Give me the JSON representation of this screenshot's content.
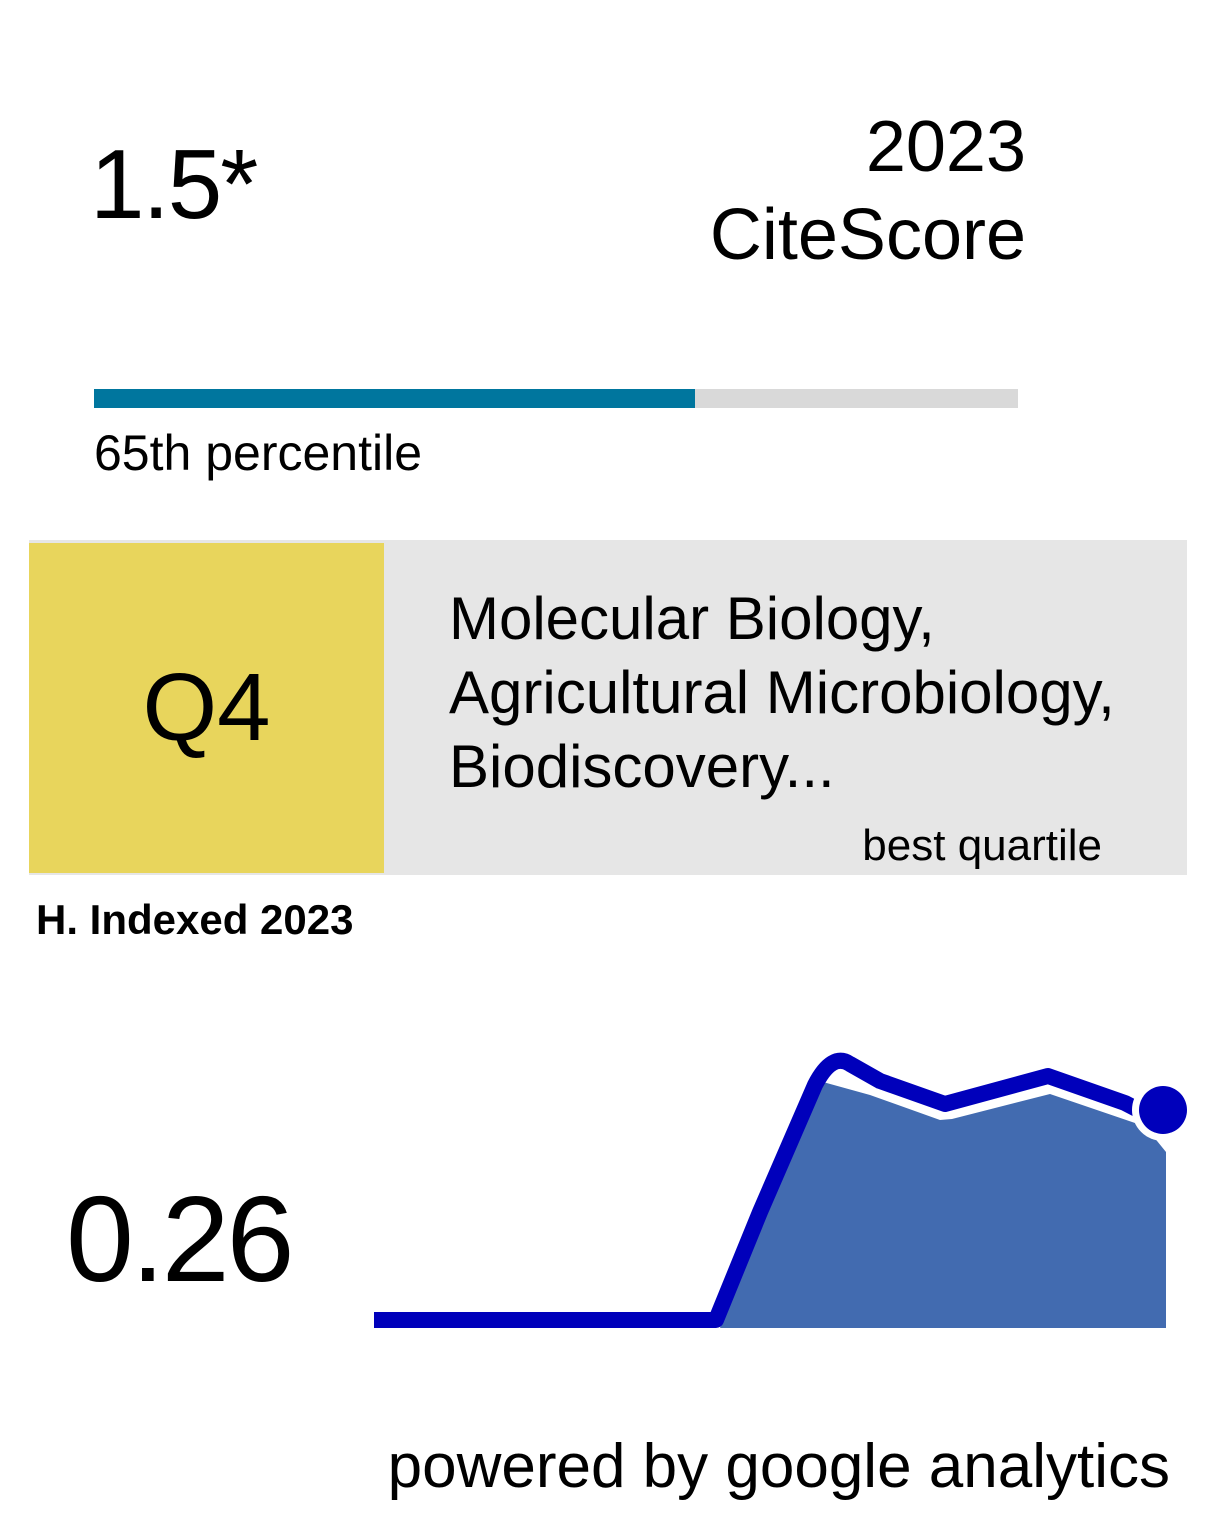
{
  "citescore": {
    "score": "1.5*",
    "year": "2023",
    "label": "CiteScore",
    "percentile": 65,
    "percentile_label": "65th percentile",
    "colors": {
      "fill": "#00769e",
      "track": "#d9d9d9"
    }
  },
  "quartile": {
    "value": "Q4",
    "subjects": [
      "Molecular Biology,",
      "Agricultural Microbiology,",
      "Biodiscovery..."
    ],
    "caption": "best quartile",
    "colors": {
      "badge": "#e8d55c",
      "panel": "#e6e6e6"
    }
  },
  "h_index": {
    "label": "H. Indexed 2023",
    "value": "0.26",
    "colors": {
      "line": "#0000bb",
      "area": "#426bb0"
    }
  },
  "footer": {
    "text": "powered by google analytics"
  }
}
